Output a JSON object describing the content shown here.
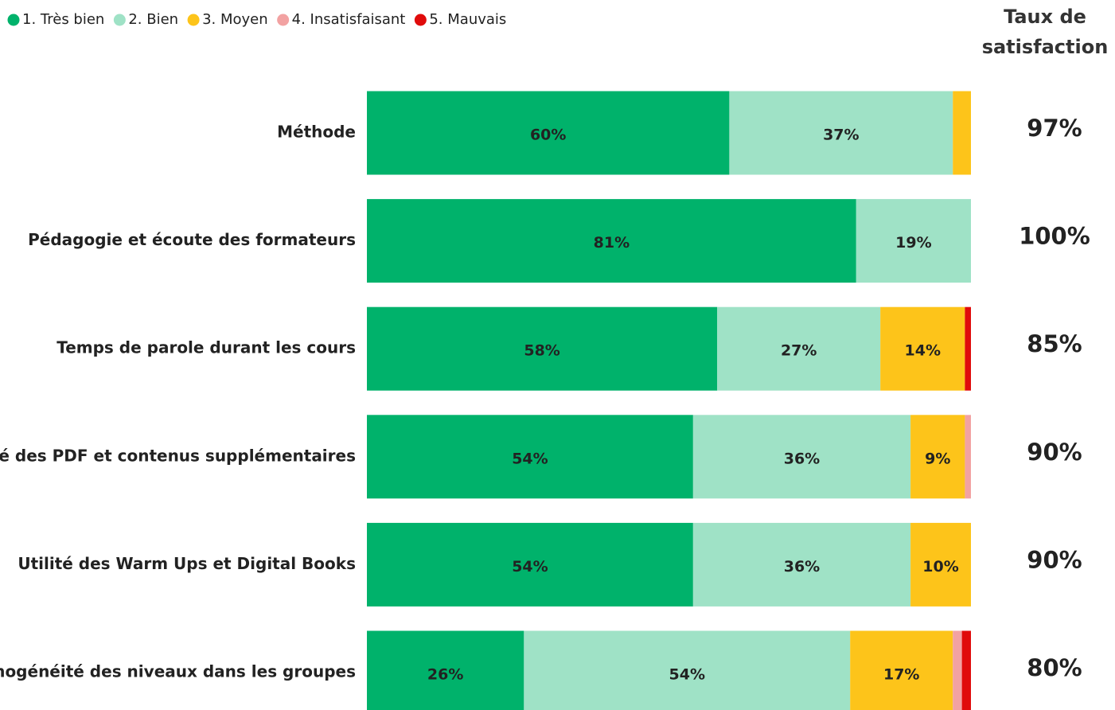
{
  "chart_data": {
    "type": "stacked-bar-horizontal",
    "categories": [
      "Méthode",
      "Pédagogie et écoute des formateurs",
      "Temps de parole durant les cours",
      "Utilité des PDF et contenus supplémentaires",
      "Utilité des Warm Ups et Digital Books",
      "Homogénéité des niveaux dans les groupes"
    ],
    "xlim": [
      0,
      100
    ],
    "legend": "top-left",
    "series": [
      {
        "name": "1. Très bien",
        "color": "#00b26b",
        "values": [
          60,
          81,
          58,
          54,
          54,
          26
        ],
        "value_labels": [
          "60%",
          "81%",
          "58%",
          "54%",
          "54%",
          "26%"
        ]
      },
      {
        "name": "2. Bien",
        "color": "#9fe2c6",
        "values": [
          37,
          19,
          27,
          36,
          36,
          54
        ],
        "value_labels": [
          "37%",
          "19%",
          "27%",
          "36%",
          "36%",
          "54%"
        ]
      },
      {
        "name": "3. Moyen",
        "color": "#fdc41a",
        "values": [
          3,
          0,
          14,
          9,
          10,
          17
        ],
        "value_labels": [
          null,
          null,
          "14%",
          "9%",
          "10%",
          "17%"
        ]
      },
      {
        "name": "4. Insatisfaisant",
        "color": "#f2a2a2",
        "values": [
          0,
          0,
          0,
          1,
          0,
          1.5
        ],
        "value_labels": [
          null,
          null,
          null,
          null,
          null,
          null
        ]
      },
      {
        "name": "5. Mauvais",
        "color": "#e00b0b",
        "values": [
          0,
          0,
          1,
          0,
          0,
          1.5
        ],
        "value_labels": [
          null,
          null,
          null,
          null,
          null,
          null
        ]
      }
    ],
    "satisfaction_title": "Taux de satisfaction",
    "satisfaction": {
      "values": [
        97,
        100,
        85,
        90,
        90,
        80
      ],
      "value_labels": [
        "97%",
        "100%",
        "85%",
        "90%",
        "90%",
        "80%"
      ]
    }
  }
}
